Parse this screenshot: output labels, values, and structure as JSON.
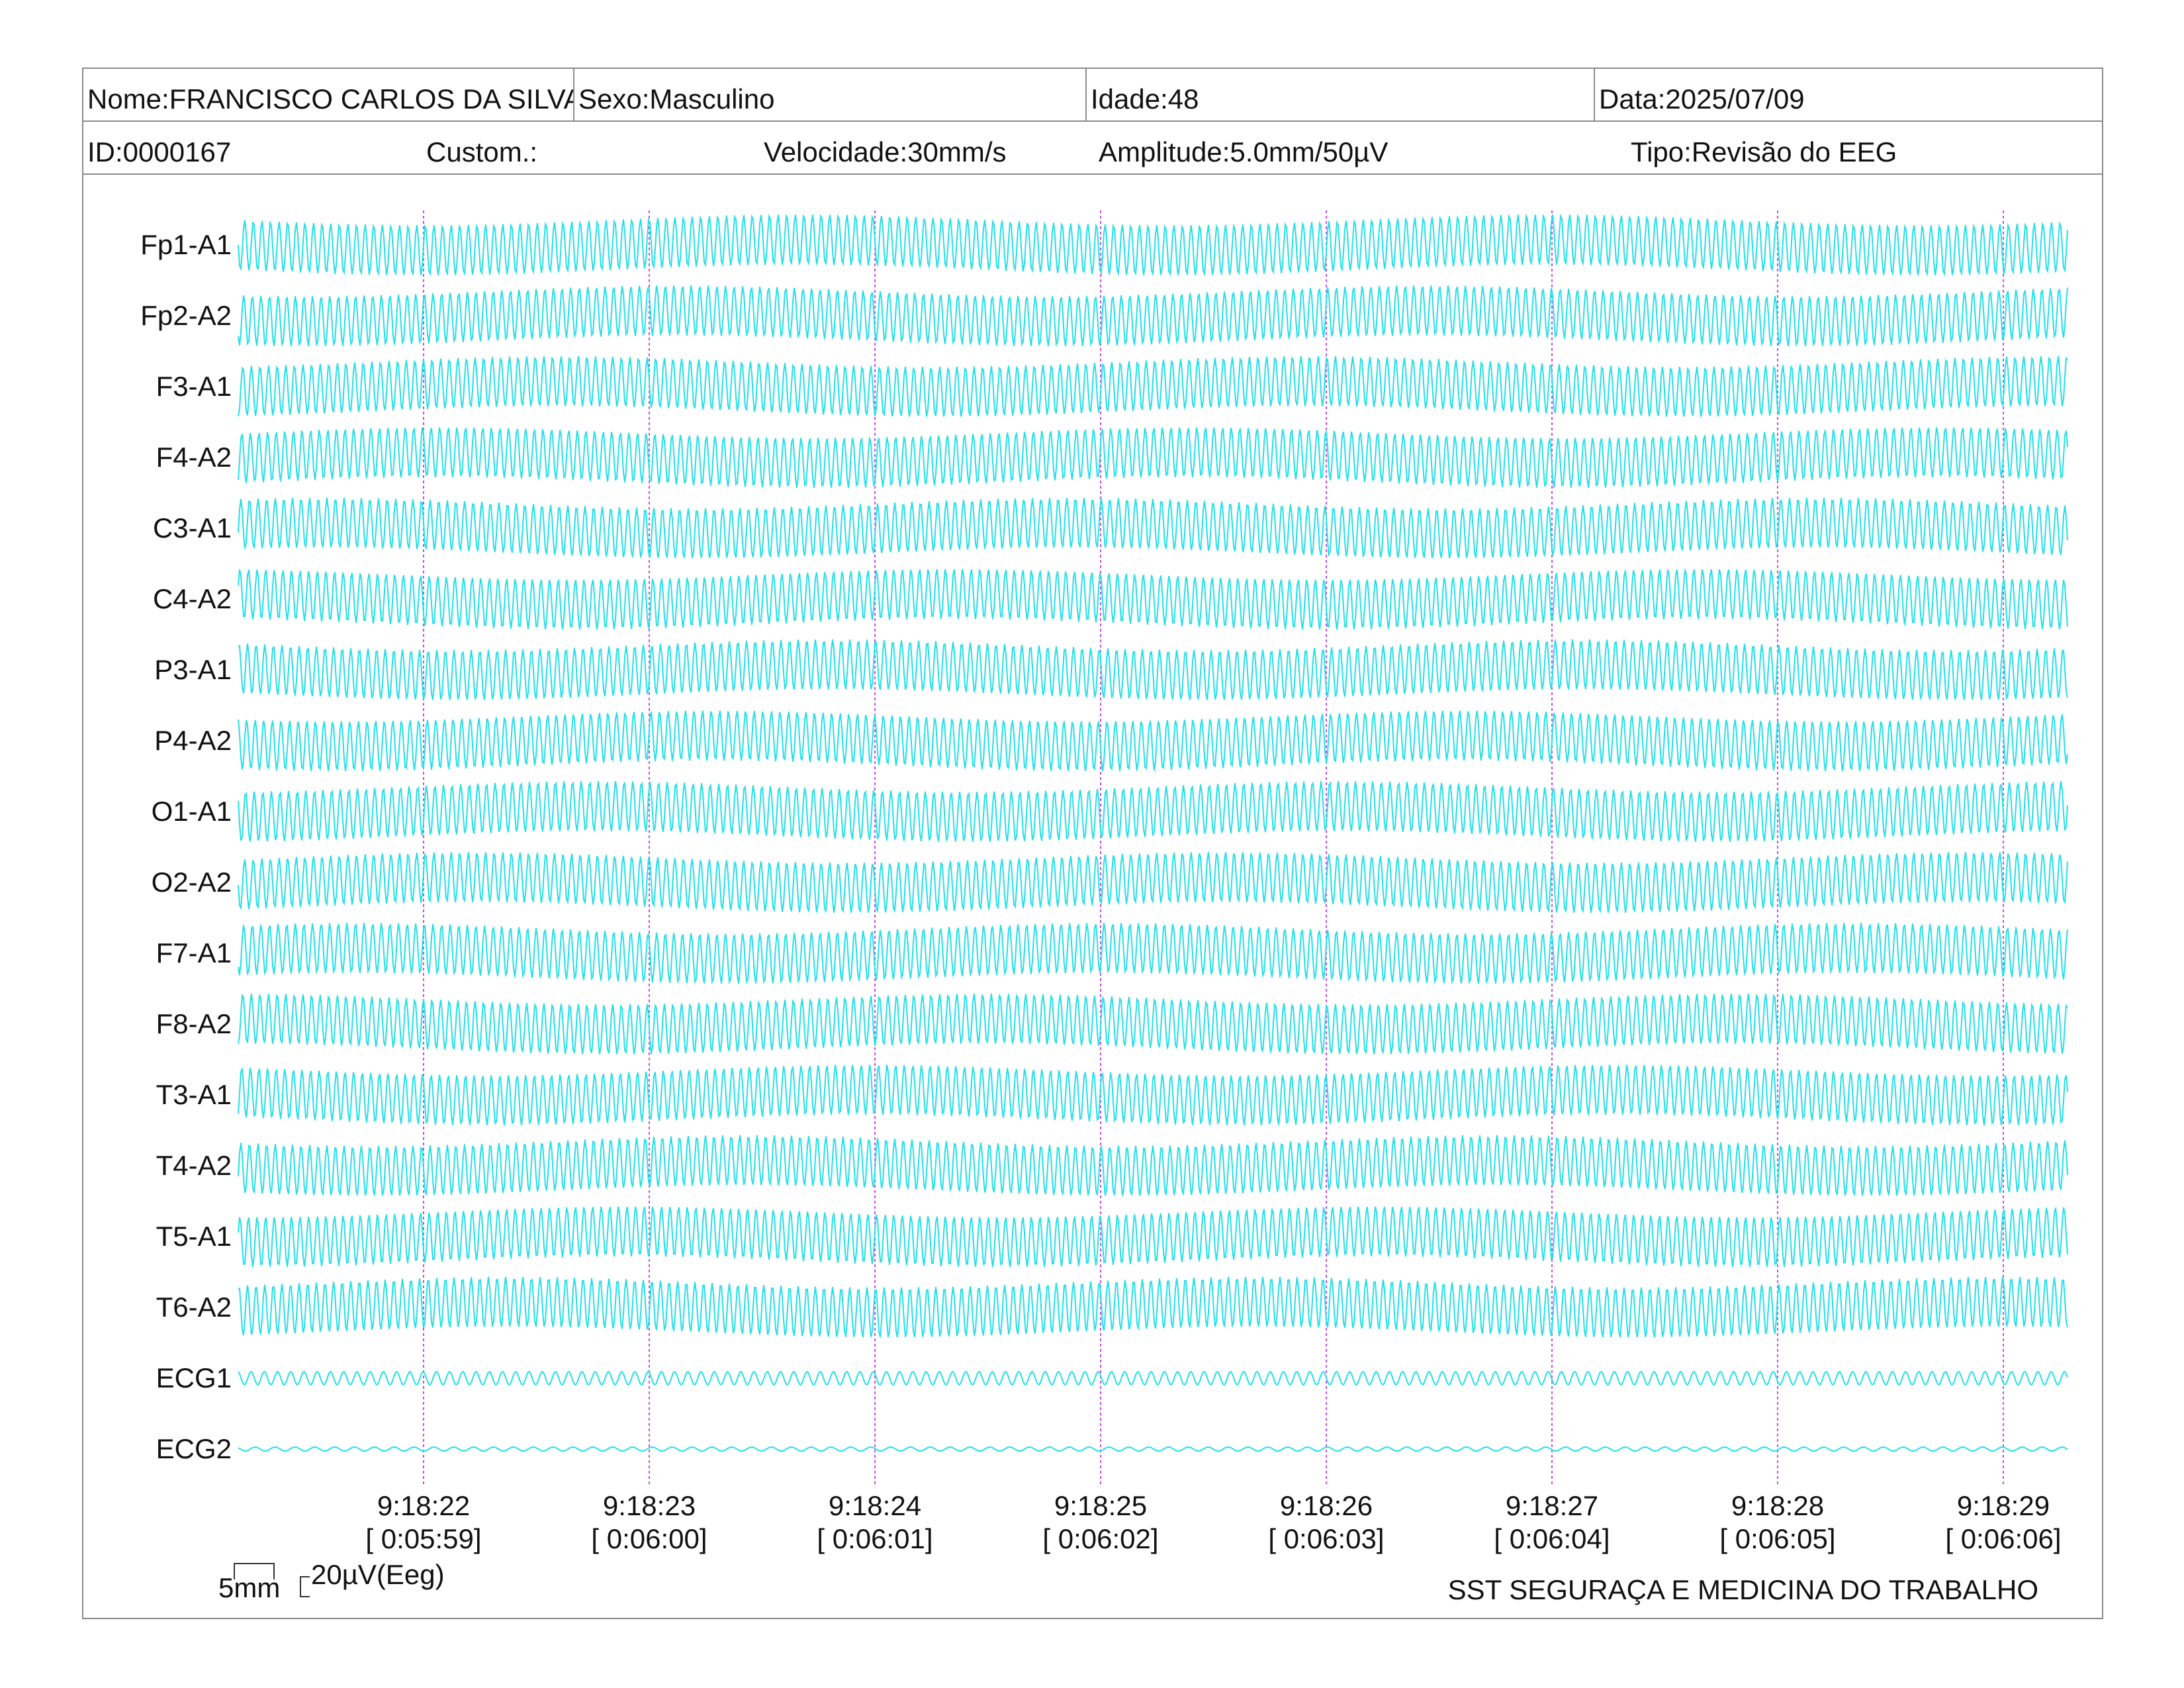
{
  "header": {
    "nome": "Nome:FRANCISCO CARLOS DA SILVA",
    "sexo": "Sexo:Masculino",
    "idade": "Idade:48",
    "data": "Data:2025/07/09",
    "id": "ID:0000167",
    "custom": "Custom.:",
    "velocidade": "Velocidade:30mm/s",
    "amplitude": "Amplitude:5.0mm/50µV",
    "tipo": "Tipo:Revisão do EEG"
  },
  "channels": [
    "Fp1-A1",
    "Fp2-A2",
    "F3-A1",
    "F4-A2",
    "C3-A1",
    "C4-A2",
    "P3-A1",
    "P4-A2",
    "O1-A1",
    "O2-A2",
    "F7-A1",
    "F8-A2",
    "T3-A1",
    "T4-A2",
    "T5-A1",
    "T6-A2",
    "ECG1",
    "ECG2"
  ],
  "time_marks": [
    {
      "clock": "9:18:22",
      "elapsed": "[ 0:05:59]"
    },
    {
      "clock": "9:18:23",
      "elapsed": "[ 0:06:00]"
    },
    {
      "clock": "9:18:24",
      "elapsed": "[ 0:06:01]"
    },
    {
      "clock": "9:18:25",
      "elapsed": "[ 0:06:02]"
    },
    {
      "clock": "9:18:26",
      "elapsed": "[ 0:06:03]"
    },
    {
      "clock": "9:18:27",
      "elapsed": "[ 0:06:04]"
    },
    {
      "clock": "9:18:28",
      "elapsed": "[ 0:06:05]"
    },
    {
      "clock": "9:18:29",
      "elapsed": "[ 0:06:06]"
    }
  ],
  "scale": {
    "time": "5mm",
    "amplitude": "20µV(Eeg)"
  },
  "footer": {
    "company": "SST SEGURAÇA E MEDICINA DO TRABALHO"
  },
  "colors": {
    "trace": "#22e0e8",
    "marker": "#cc44ee",
    "border": "#8a8a8a"
  }
}
